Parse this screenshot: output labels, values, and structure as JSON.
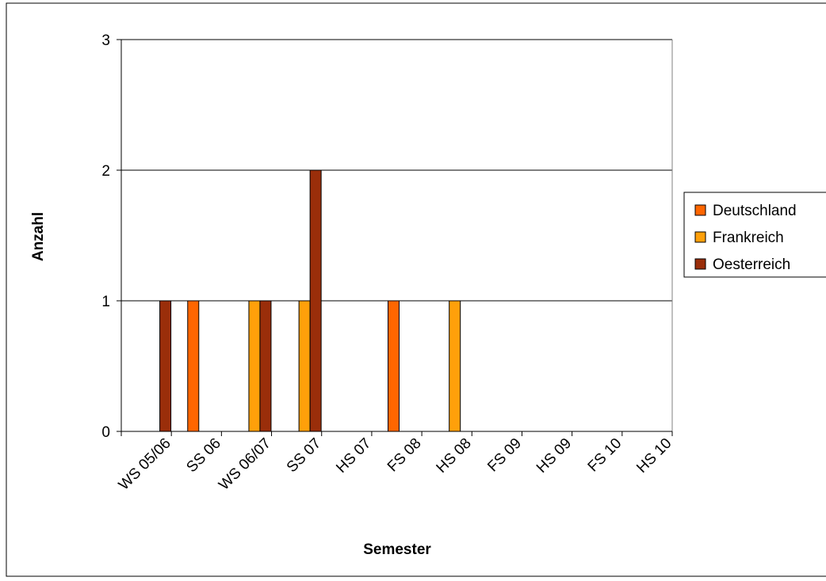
{
  "colors": {
    "Deutschland": "#FF6600",
    "Frankreich": "#FFA00A",
    "Oesterreich": "#9A2E0A",
    "grid": "#000000",
    "frame": "#000000"
  },
  "chart_data": {
    "type": "bar",
    "title": "",
    "xlabel": "Semester",
    "ylabel": "Anzahl",
    "ylim": [
      0,
      3
    ],
    "yticks": [
      0,
      1,
      2,
      3
    ],
    "grid": "horizontal",
    "legend_position": "right",
    "categories": [
      "WS 05/06",
      "SS 06",
      "WS 06/07",
      "SS 07",
      "HS 07",
      "FS 08",
      "HS 08",
      "FS 09",
      "HS 09",
      "FS 10",
      "HS 10"
    ],
    "series": [
      {
        "name": "Deutschland",
        "values": [
          0,
          1,
          0,
          0,
          0,
          1,
          0,
          0,
          0,
          0,
          0
        ]
      },
      {
        "name": "Frankreich",
        "values": [
          0,
          0,
          1,
          1,
          0,
          0,
          1,
          0,
          0,
          0,
          0
        ]
      },
      {
        "name": "Oesterreich",
        "values": [
          1,
          0,
          1,
          2,
          0,
          0,
          0,
          0,
          0,
          0,
          0
        ]
      }
    ]
  }
}
